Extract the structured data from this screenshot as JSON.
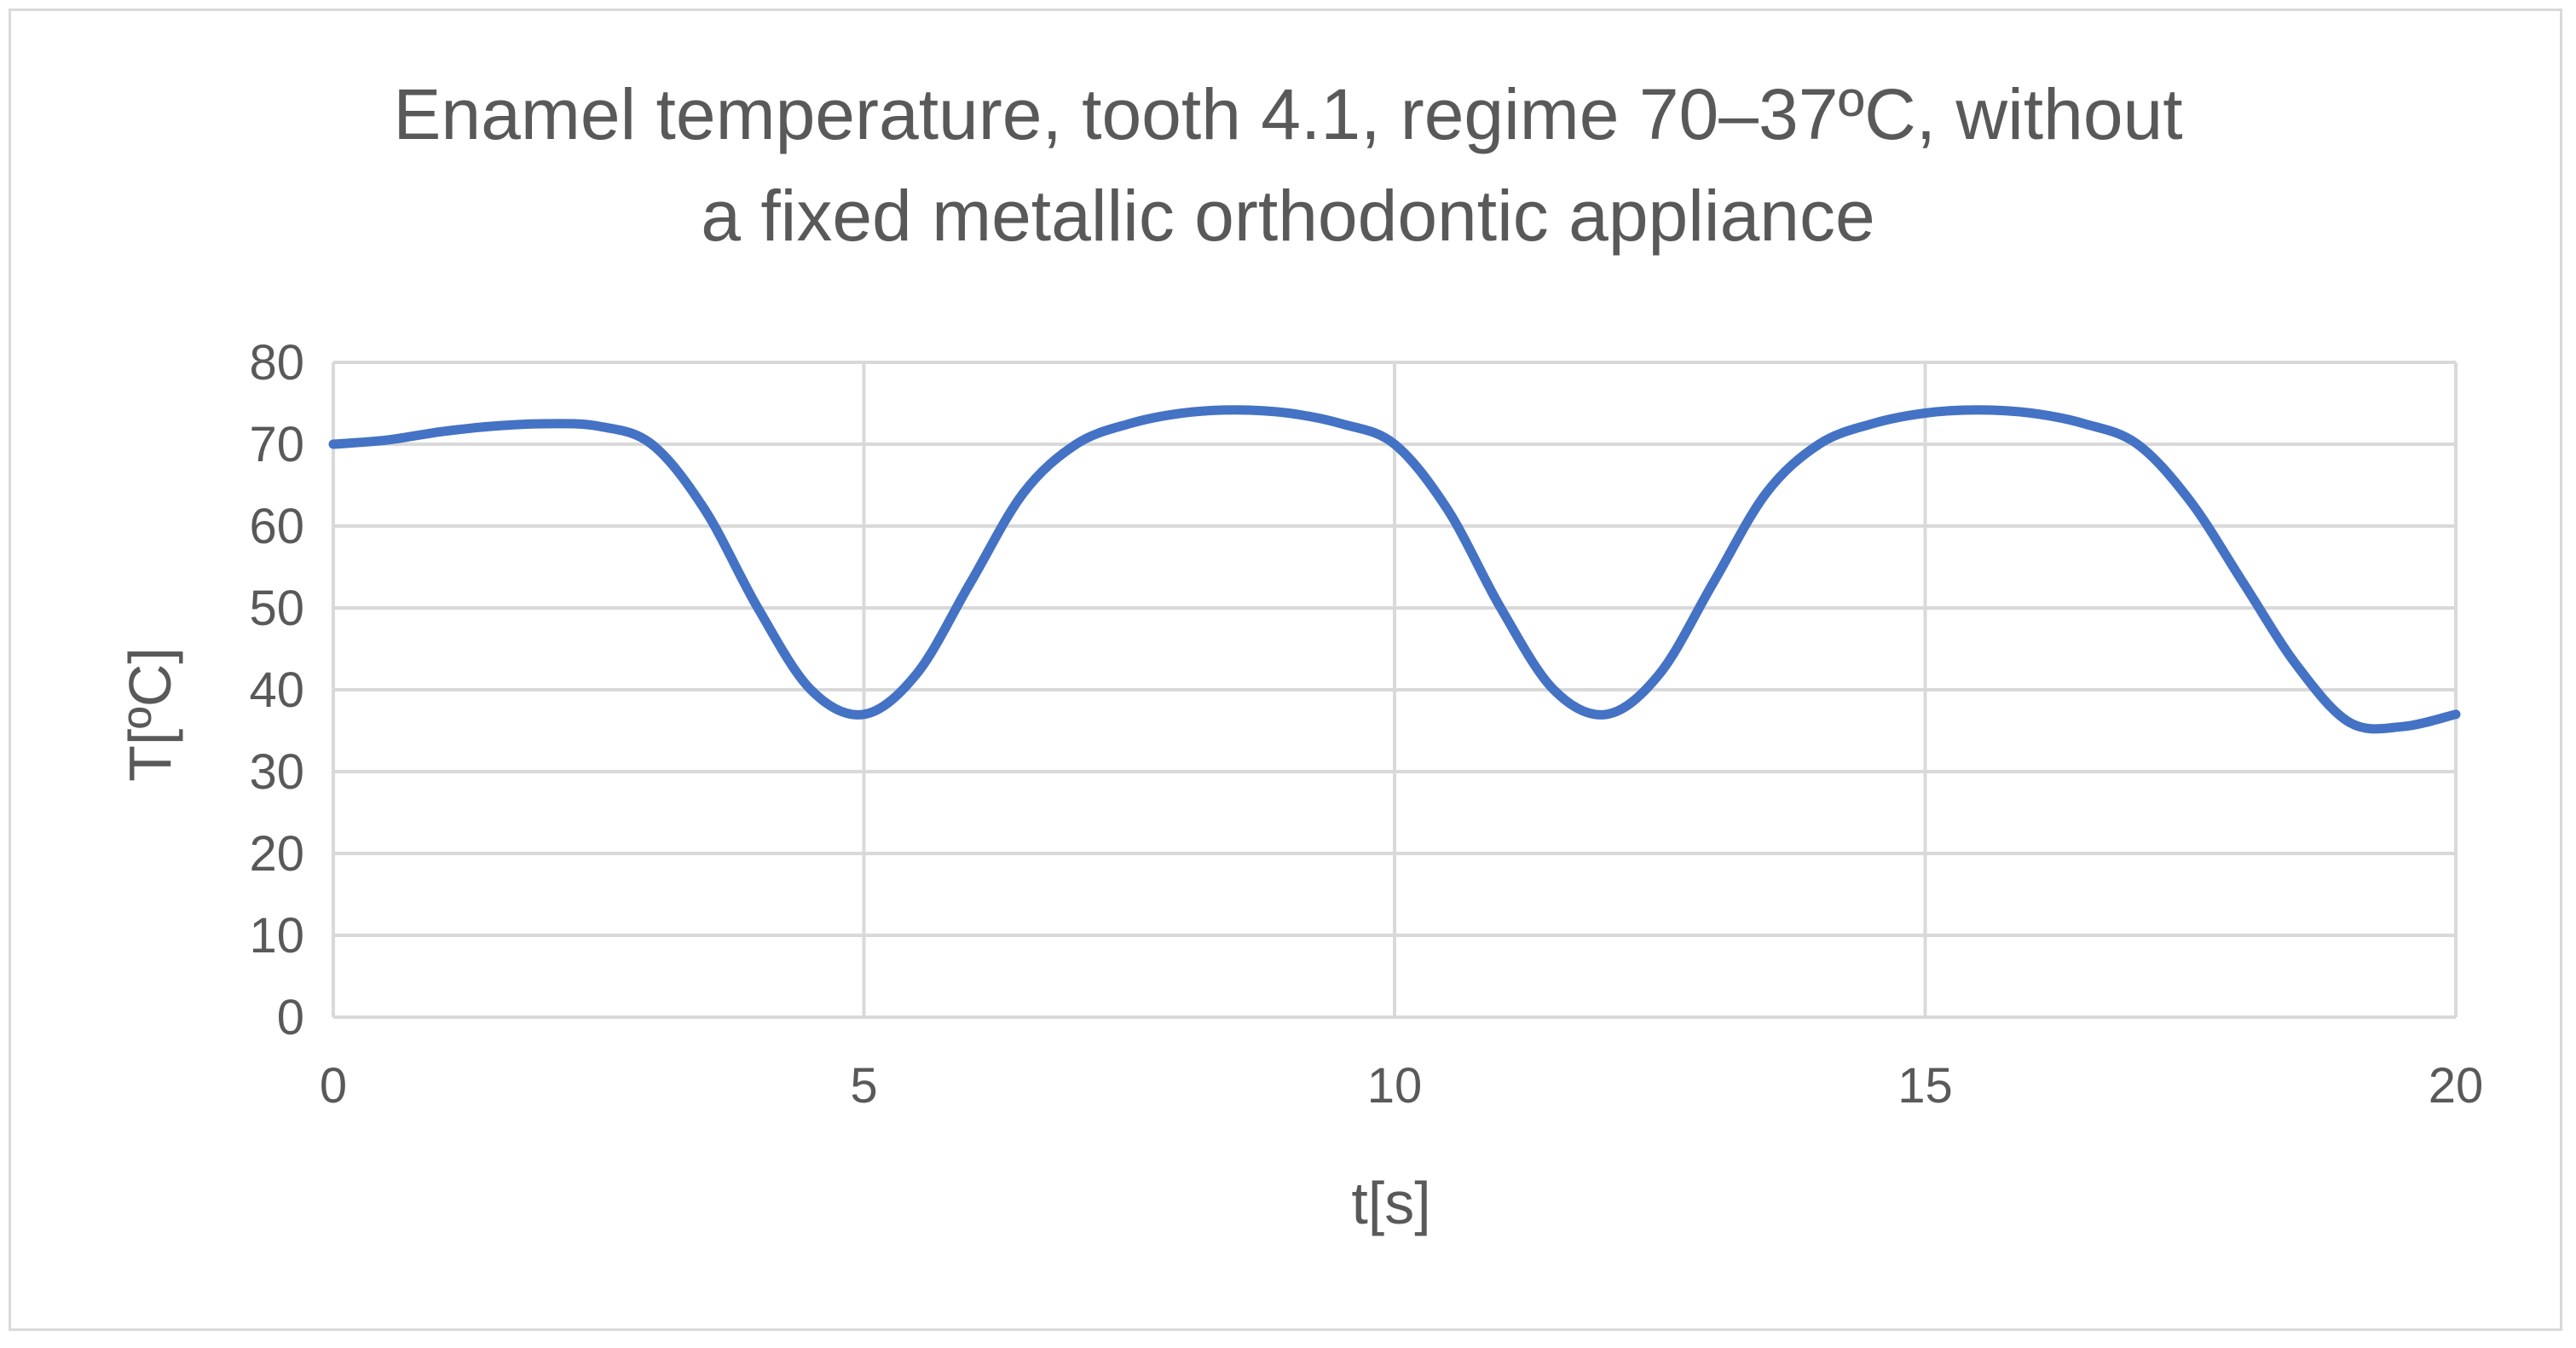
{
  "chart_data": {
    "type": "line",
    "title_line1": "Enamel temperature, tooth 4.1, regime 70–37ºC, without",
    "title_line2": "a fixed metallic orthodontic appliance",
    "xlabel": "t[s]",
    "ylabel": "T[ºC]",
    "xlim": [
      0,
      20
    ],
    "ylim": [
      0,
      80
    ],
    "xticks": [
      0,
      5,
      10,
      15,
      20
    ],
    "yticks": [
      0,
      10,
      20,
      30,
      40,
      50,
      60,
      70,
      80
    ],
    "grid": true,
    "legend": "none",
    "line_color": "#4472c4",
    "series": [
      {
        "x": [
          0,
          0.5,
          1,
          1.5,
          2,
          2.5,
          3,
          3.5,
          4,
          4.5,
          5,
          5.5,
          6,
          6.5,
          7,
          7.5,
          8,
          8.5,
          9,
          9.5,
          10,
          10.5,
          11,
          11.5,
          12,
          12.5,
          13,
          13.5,
          14,
          14.5,
          15,
          15.5,
          16,
          16.5,
          17,
          17.5,
          18,
          18.5,
          19,
          19.5,
          20
        ],
        "y": [
          70,
          70.5,
          71.5,
          72.2,
          72.5,
          72.2,
          70,
          62,
          50,
          40,
          37,
          42,
          53,
          64,
          70,
          72.5,
          73.8,
          74.2,
          73.8,
          72.5,
          70,
          62,
          50,
          40,
          37,
          42,
          53,
          64,
          70,
          72.5,
          73.8,
          74.2,
          73.8,
          72.5,
          70,
          63,
          53,
          43,
          36,
          35.5,
          37
        ]
      }
    ]
  }
}
